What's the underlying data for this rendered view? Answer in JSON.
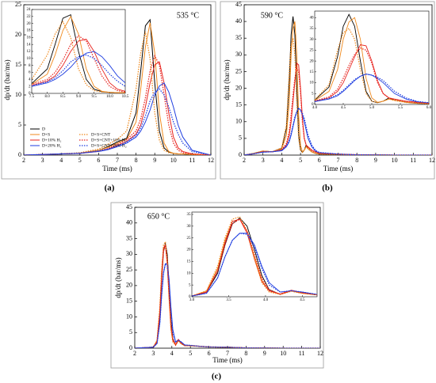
{
  "chart_data": [
    {
      "type": "line",
      "label": "(a)",
      "annotation": "535 °C",
      "xlabel": "Time (ms)",
      "ylabel": "dp/dt (bar/ms)",
      "legend": "lower left",
      "xlim": [
        2,
        12
      ],
      "xticks": [
        2,
        3,
        4,
        5,
        6,
        7,
        8,
        9,
        10,
        11,
        12
      ],
      "ylim": [
        0,
        25
      ],
      "yticks": [
        0,
        5,
        10,
        15,
        20,
        25
      ],
      "x": [
        2,
        4,
        5,
        6,
        6.5,
        7,
        7.5,
        8,
        8.25,
        8.5,
        8.75,
        9,
        9.25,
        9.5,
        9.75,
        10,
        10.25,
        10.5,
        11,
        12
      ],
      "series": [
        {
          "name": "D",
          "color": "#000000",
          "dash": false,
          "values": [
            0,
            0.2,
            0.3,
            0.8,
            1.4,
            2.2,
            2.8,
            7,
            14,
            21.5,
            22.5,
            12,
            4,
            1.2,
            0.5,
            0.3,
            0.2,
            0.2,
            0.1,
            0
          ]
        },
        {
          "name": "D+S",
          "color": "#f08a1e",
          "dash": false,
          "values": [
            0,
            0.2,
            0.3,
            0.8,
            1.3,
            2,
            2.6,
            5.5,
            11,
            18,
            22,
            17,
            7,
            2,
            0.6,
            0.3,
            0.2,
            0.2,
            0.1,
            0
          ]
        },
        {
          "name": "D+10% H₂",
          "color": "#e8231e",
          "dash": false,
          "values": [
            0,
            0.2,
            0.3,
            0.6,
            1,
            1.6,
            2.3,
            3.5,
            5,
            8,
            12,
            15,
            15.5,
            12,
            7,
            3,
            1.2,
            0.6,
            0.2,
            0
          ]
        },
        {
          "name": "D+20% H₂",
          "color": "#1f3ee0",
          "dash": false,
          "values": [
            0,
            0.2,
            0.3,
            0.6,
            0.9,
            1.4,
            2,
            3,
            4,
            5.5,
            7.5,
            10,
            11.5,
            12,
            10.5,
            8,
            5,
            3,
            0.8,
            0
          ]
        },
        {
          "name": "D+S+CNT",
          "color": "#f08a1e",
          "dash": true,
          "values": [
            0,
            0.2,
            0.4,
            1,
            1.8,
            2.6,
            4,
            11,
            17,
            20.5,
            16,
            7,
            2.5,
            0.8,
            0.4,
            0.3,
            0.2,
            0.2,
            0.1,
            0
          ]
        },
        {
          "name": "D+S+CNT+10% H₂",
          "color": "#e8231e",
          "dash": true,
          "values": [
            0,
            0.2,
            0.3,
            0.7,
            1.1,
            1.8,
            2.6,
            4,
            6,
            9.5,
            14,
            16.5,
            15,
            10,
            5,
            2,
            0.8,
            0.4,
            0.2,
            0
          ]
        },
        {
          "name": "D+S+CNT+20% H₂",
          "color": "#1f3ee0",
          "dash": true,
          "values": [
            0,
            0.2,
            0.3,
            0.7,
            1,
            1.5,
            2.2,
            3.3,
            4.5,
            6.5,
            9,
            10.5,
            11,
            10,
            8,
            5.5,
            3.5,
            2,
            0.6,
            0
          ]
        }
      ],
      "inset": {
        "xlim": [
          7.5,
          10.5
        ],
        "xticks": [
          7.5,
          {
            "value": 8,
            "label": "8.0"
          },
          8.5,
          {
            "value": 9,
            "label": "9.0"
          },
          9.5,
          {
            "value": 10,
            "label": "10.0"
          },
          10.5
        ],
        "ylim": [
          0,
          24
        ],
        "yticks": [
          0,
          2,
          4,
          6,
          8,
          10,
          12,
          14,
          16,
          18,
          20,
          22,
          24
        ]
      }
    },
    {
      "type": "line",
      "label": "(b)",
      "annotation": "590 °C",
      "xlabel": "Time (ms)",
      "ylabel": "dp/dt (bar/ms)",
      "xlim": [
        2,
        12
      ],
      "xticks": [
        2,
        3,
        4,
        5,
        6,
        7,
        8,
        9,
        10,
        11,
        12
      ],
      "ylim": [
        0,
        45
      ],
      "yticks": [
        0,
        5,
        10,
        15,
        20,
        25,
        30,
        35,
        40,
        45
      ],
      "x": [
        2,
        2.5,
        3,
        3.5,
        4,
        4.25,
        4.4,
        4.5,
        4.6,
        4.7,
        4.8,
        4.9,
        5,
        5.1,
        5.2,
        5.3,
        5.4,
        5.6,
        5.8,
        6,
        7,
        8,
        10,
        12
      ],
      "series": [
        {
          "color": "#000000",
          "dash": false,
          "values": [
            0,
            0.5,
            1.2,
            1,
            2,
            8,
            22,
            36,
            41.5,
            36,
            20,
            6,
            1.5,
            0.8,
            1.5,
            3,
            2,
            1,
            0.5,
            0.3,
            0.2,
            0.1,
            0,
            0
          ]
        },
        {
          "color": "#f08a1e",
          "dash": false,
          "values": [
            0,
            0.5,
            1.2,
            1,
            1.8,
            6,
            16,
            30,
            38,
            40,
            30,
            12,
            3,
            1,
            1.5,
            2.5,
            2,
            1,
            0.6,
            0.4,
            0.2,
            0.1,
            0,
            0
          ]
        },
        {
          "color": "#e8231e",
          "dash": false,
          "values": [
            0,
            0.4,
            1,
            1,
            1.5,
            3,
            6,
            10,
            16,
            22,
            27.5,
            27,
            20,
            11,
            5,
            3,
            2.5,
            1.5,
            1,
            0.6,
            0.3,
            0.1,
            0,
            0
          ]
        },
        {
          "color": "#1f3ee0",
          "dash": false,
          "values": [
            0,
            0.4,
            0.9,
            1,
            1.3,
            2.5,
            4,
            6,
            8.5,
            11,
            13,
            14,
            13.5,
            12,
            10,
            7.5,
            5,
            2.5,
            1.2,
            0.7,
            0.3,
            0.1,
            0,
            0
          ]
        },
        {
          "color": "#f08a1e",
          "dash": true,
          "values": [
            0,
            0.5,
            1.2,
            1,
            2.2,
            9,
            25,
            33,
            35,
            30,
            16,
            5,
            1.5,
            0.8,
            1.5,
            2.5,
            1.8,
            0.9,
            0.5,
            0.3,
            0.2,
            0.1,
            0,
            0
          ]
        },
        {
          "color": "#e8231e",
          "dash": true,
          "values": [
            0,
            0.4,
            1,
            1,
            1.6,
            3.5,
            7,
            12,
            18,
            23,
            26,
            25,
            19,
            10,
            5,
            3,
            2.3,
            1.4,
            0.9,
            0.5,
            0.3,
            0.1,
            0,
            0
          ]
        },
        {
          "color": "#1f3ee0",
          "dash": true,
          "values": [
            0,
            0.4,
            0.9,
            1,
            1.4,
            2.8,
            4.5,
            6.5,
            9,
            11.5,
            13,
            14,
            13.5,
            12.5,
            11,
            8.5,
            6,
            3,
            1.4,
            0.8,
            0.3,
            0.1,
            0,
            0
          ]
        }
      ],
      "inset": {
        "xlim": [
          4,
          6
        ],
        "xticks": [
          {
            "value": 4,
            "label": "4.0"
          },
          4.5,
          {
            "value": 5,
            "label": "5.0"
          },
          5.5,
          {
            "value": 6,
            "label": "6.0"
          }
        ],
        "ylim": [
          0,
          43
        ],
        "yticks": [
          0,
          5,
          10,
          15,
          20,
          25,
          30,
          35,
          40
        ]
      }
    },
    {
      "type": "line",
      "label": "(c)",
      "annotation": "650 °C",
      "xlabel": "Time (ms)",
      "ylabel": "dp/dt (bar/ms)",
      "xlim": [
        2,
        12
      ],
      "xticks": [
        2,
        3,
        4,
        5,
        6,
        7,
        8,
        9,
        10,
        11,
        12
      ],
      "ylim": [
        0,
        45
      ],
      "yticks": [
        0,
        5,
        10,
        15,
        20,
        25,
        30,
        35,
        40,
        45
      ],
      "x": [
        2,
        3,
        3.2,
        3.35,
        3.45,
        3.55,
        3.65,
        3.75,
        3.85,
        3.95,
        4.05,
        4.2,
        4.35,
        4.5,
        4.7,
        5,
        5.5,
        6,
        7,
        8,
        10,
        12
      ],
      "series": [
        {
          "color": "#000000",
          "dash": false,
          "values": [
            0,
            0.3,
            2,
            10,
            22,
            31,
            33.5,
            30,
            20,
            9,
            3,
            1,
            2.5,
            1.5,
            0.8,
            0.8,
            0.6,
            0.4,
            0.3,
            0.1,
            0,
            0
          ]
        },
        {
          "color": "#f08a1e",
          "dash": false,
          "values": [
            0,
            0.3,
            2.5,
            12,
            24,
            32,
            33,
            28,
            17,
            7,
            2.5,
            1,
            2.5,
            1.5,
            0.8,
            0.8,
            0.6,
            0.4,
            0.3,
            0.1,
            0,
            0
          ]
        },
        {
          "color": "#e8231e",
          "dash": false,
          "values": [
            0,
            0.3,
            2,
            11,
            23,
            32,
            33,
            27,
            16,
            6.5,
            2.5,
            1.2,
            2.8,
            1.8,
            0.9,
            0.9,
            0.6,
            0.4,
            0.3,
            0.1,
            0,
            0
          ]
        },
        {
          "color": "#1f3ee0",
          "dash": false,
          "values": [
            0,
            0.3,
            1.5,
            8,
            17,
            24,
            27,
            27,
            22,
            13,
            6,
            2,
            2.5,
            2,
            1,
            0.9,
            0.6,
            0.4,
            0.3,
            0.1,
            0,
            0
          ]
        },
        {
          "color": "#f08a1e",
          "dash": true,
          "values": [
            0,
            0.3,
            2.5,
            13,
            25,
            33,
            34,
            28,
            16,
            6,
            2,
            1,
            2.3,
            1.4,
            0.8,
            0.8,
            0.6,
            0.4,
            0.3,
            0.1,
            0,
            0
          ]
        },
        {
          "color": "#e8231e",
          "dash": true,
          "values": [
            0,
            0.3,
            2,
            11,
            22,
            31,
            33,
            28,
            18,
            8,
            3,
            1,
            2.6,
            1.6,
            0.8,
            0.8,
            0.6,
            0.4,
            0.3,
            0.1,
            0,
            0
          ]
        },
        {
          "color": "#1f3ee0",
          "dash": true,
          "values": [
            0,
            0.3,
            1.5,
            8,
            17,
            24,
            27,
            26.5,
            21,
            12,
            5,
            2,
            2.6,
            2,
            1,
            0.9,
            0.6,
            0.4,
            0.3,
            0.1,
            0,
            0
          ]
        }
      ],
      "inset": {
        "xlim": [
          3,
          4.7
        ],
        "xticks": [
          {
            "value": 3,
            "label": "3.0"
          },
          3.5,
          {
            "value": 4,
            "label": "4.0"
          },
          4.5
        ],
        "ylim": [
          0,
          36
        ],
        "yticks": [
          0,
          5,
          10,
          15,
          20,
          25,
          30,
          35
        ]
      }
    }
  ]
}
